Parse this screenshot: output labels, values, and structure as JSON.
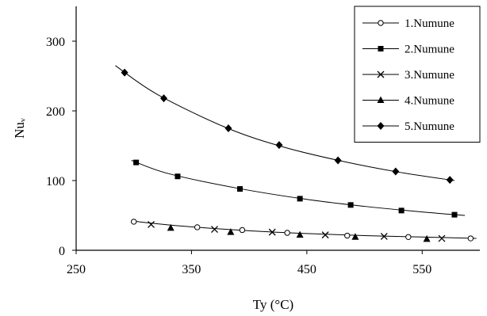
{
  "chart_data": {
    "type": "line",
    "xlabel": "Ty (°C)",
    "ylabel": "Nuᵥ",
    "xlim": [
      250,
      600
    ],
    "ylim": [
      0,
      350
    ],
    "xticks": [
      250,
      350,
      450,
      550
    ],
    "yticks": [
      0,
      100,
      200,
      300
    ],
    "grid": false,
    "legend_position": "top-right",
    "series": [
      {
        "name": "1.Numune",
        "marker": "open-circle",
        "points": [
          [
            300,
            41
          ],
          [
            355,
            33
          ],
          [
            394,
            29
          ],
          [
            433,
            25
          ],
          [
            485,
            21
          ],
          [
            538,
            19
          ],
          [
            592,
            17
          ]
        ],
        "curve": [
          [
            298,
            42
          ],
          [
            340,
            35
          ],
          [
            400,
            28
          ],
          [
            450,
            24
          ],
          [
            500,
            21
          ],
          [
            550,
            19
          ],
          [
            597,
            17
          ]
        ]
      },
      {
        "name": "2.Numune",
        "marker": "filled-square",
        "points": [
          [
            302,
            126
          ],
          [
            338,
            106
          ],
          [
            392,
            88
          ],
          [
            444,
            74
          ],
          [
            488,
            65
          ],
          [
            532,
            57
          ],
          [
            578,
            51
          ]
        ],
        "curve": [
          [
            298,
            129
          ],
          [
            330,
            110
          ],
          [
            390,
            89
          ],
          [
            450,
            73
          ],
          [
            500,
            63
          ],
          [
            550,
            55
          ],
          [
            587,
            50
          ]
        ]
      },
      {
        "name": "3.Numune",
        "marker": "x",
        "points": [
          [
            315,
            37
          ],
          [
            370,
            30
          ],
          [
            420,
            26
          ],
          [
            466,
            22
          ],
          [
            517,
            20
          ],
          [
            567,
            17
          ]
        ]
      },
      {
        "name": "4.Numune",
        "marker": "filled-triangle",
        "points": [
          [
            332,
            32
          ],
          [
            384,
            26
          ],
          [
            444,
            22
          ],
          [
            492,
            19
          ],
          [
            554,
            16
          ]
        ]
      },
      {
        "name": "5.Numune",
        "marker": "filled-diamond",
        "points": [
          [
            292,
            255
          ],
          [
            326,
            218
          ],
          [
            382,
            175
          ],
          [
            426,
            151
          ],
          [
            477,
            129
          ],
          [
            527,
            113
          ],
          [
            574,
            101
          ]
        ],
        "curve": [
          [
            284,
            265
          ],
          [
            320,
            224
          ],
          [
            380,
            176
          ],
          [
            430,
            148
          ],
          [
            480,
            128
          ],
          [
            530,
            112
          ],
          [
            578,
            100
          ]
        ]
      }
    ]
  }
}
